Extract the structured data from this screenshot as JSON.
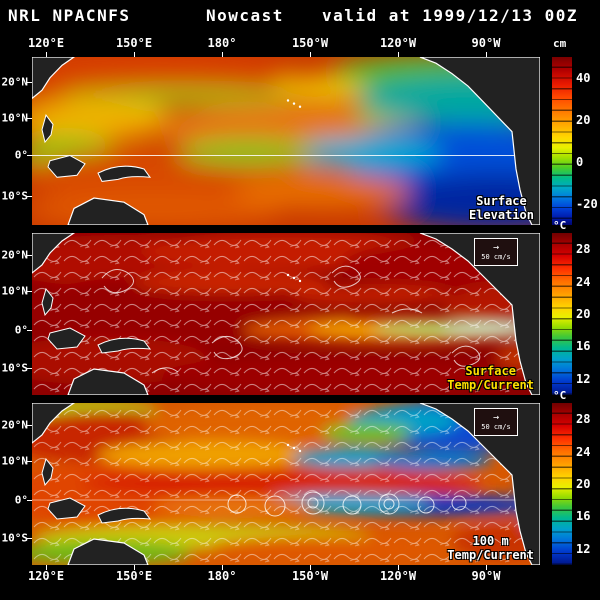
{
  "header": {
    "agency": "NRL NPACNFS",
    "product": "Nowcast",
    "valid": "valid at 1999/12/13 00Z"
  },
  "axis": {
    "lon": [
      "120°E",
      "150°E",
      "180°",
      "150°W",
      "120°W",
      "90°W"
    ],
    "lat": [
      "20°N",
      "10°N",
      "0°",
      "10°S"
    ]
  },
  "panels": [
    {
      "id": "surface-elevation",
      "label_line1": "Surface",
      "label_line2": "Elevation"
    },
    {
      "id": "surface-temp-current",
      "label_line1": "Surface",
      "label_line2": "Temp/Current",
      "scale_label": "50 cm/s"
    },
    {
      "id": "100m-temp-current",
      "label_line1": "100 m",
      "label_line2": "Temp/Current",
      "scale_label": "50 cm/s"
    }
  ],
  "colorbars": {
    "elevation": {
      "unit": "cm",
      "ticks": [
        "40",
        "20",
        "0",
        "-20"
      ]
    },
    "surface_temp": {
      "unit": "°C",
      "ticks": [
        "28",
        "24",
        "20",
        "16",
        "12"
      ]
    },
    "subsurface_temp": {
      "unit": "°C",
      "ticks": [
        "28",
        "24",
        "20",
        "16",
        "12"
      ]
    }
  },
  "colors": {
    "background": "#000000",
    "label_yellow": "#ffe000",
    "coast_outline": "#ffffff",
    "land_fill": "#222222"
  }
}
